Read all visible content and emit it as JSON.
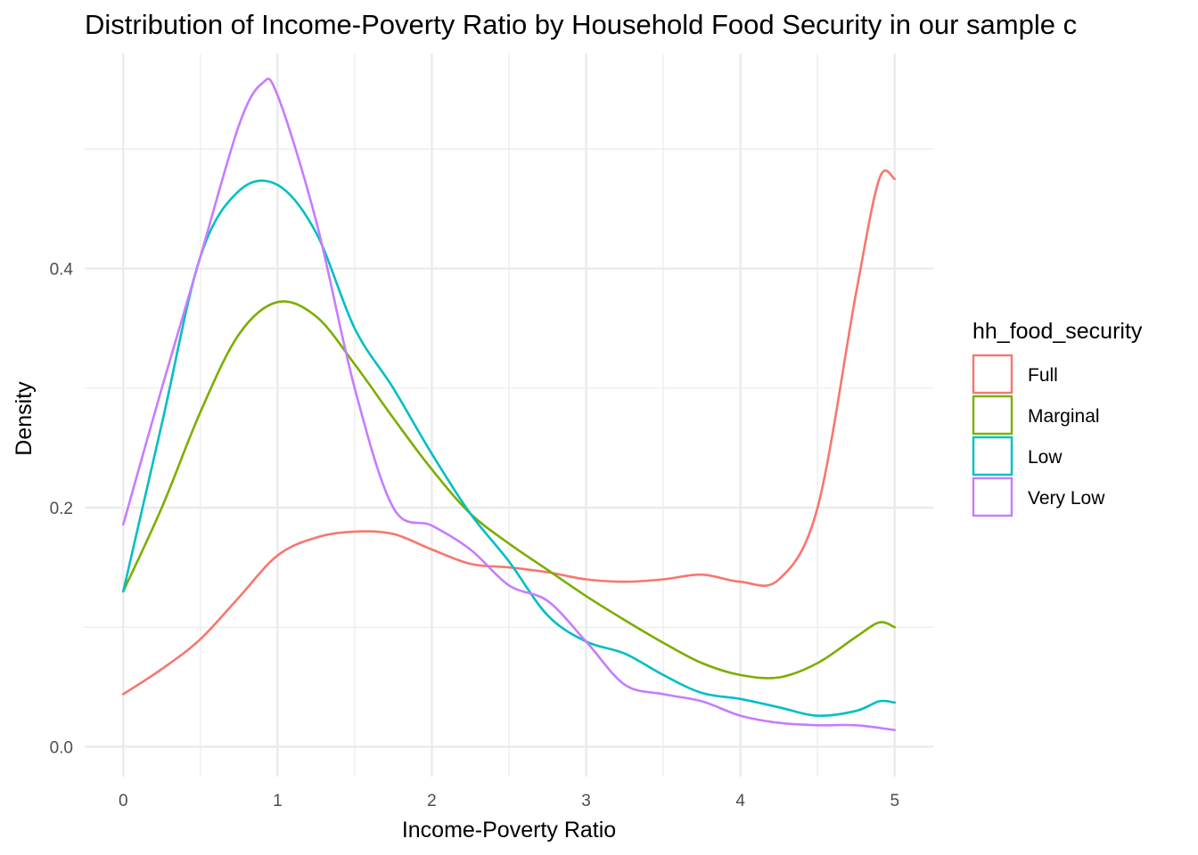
{
  "chart_data": {
    "type": "line",
    "title": "Distribution of Income-Poverty Ratio by Household Food Security in our sample c",
    "xlabel": "Income-Poverty Ratio",
    "ylabel": "Density",
    "xlim": [
      -0.25,
      5.25
    ],
    "ylim": [
      -0.025,
      0.58
    ],
    "x_ticks": [
      0,
      1,
      2,
      3,
      4,
      5
    ],
    "y_ticks": [
      0.0,
      0.2,
      0.4
    ],
    "x_tick_labels": [
      "0",
      "1",
      "2",
      "3",
      "4",
      "5"
    ],
    "y_tick_labels": [
      "0.0",
      "0.2",
      "0.4"
    ],
    "grid": true,
    "legend": {
      "title": "hh_food_security",
      "position": "right"
    },
    "series": [
      {
        "name": "Full",
        "color": "#F8766D",
        "points": [
          [
            0,
            0.044
          ],
          [
            0.25,
            0.065
          ],
          [
            0.5,
            0.09
          ],
          [
            0.75,
            0.125
          ],
          [
            1,
            0.16
          ],
          [
            1.25,
            0.175
          ],
          [
            1.5,
            0.18
          ],
          [
            1.75,
            0.178
          ],
          [
            2,
            0.165
          ],
          [
            2.25,
            0.153
          ],
          [
            2.5,
            0.15
          ],
          [
            2.75,
            0.146
          ],
          [
            3,
            0.14
          ],
          [
            3.25,
            0.138
          ],
          [
            3.5,
            0.14
          ],
          [
            3.75,
            0.144
          ],
          [
            4,
            0.138
          ],
          [
            4.25,
            0.14
          ],
          [
            4.5,
            0.2
          ],
          [
            4.75,
            0.38
          ],
          [
            4.9,
            0.475
          ],
          [
            5,
            0.475
          ]
        ]
      },
      {
        "name": "Marginal",
        "color": "#7CAE00",
        "points": [
          [
            0,
            0.13
          ],
          [
            0.25,
            0.2
          ],
          [
            0.5,
            0.28
          ],
          [
            0.75,
            0.345
          ],
          [
            1,
            0.372
          ],
          [
            1.25,
            0.36
          ],
          [
            1.5,
            0.32
          ],
          [
            1.75,
            0.275
          ],
          [
            2,
            0.232
          ],
          [
            2.25,
            0.195
          ],
          [
            2.5,
            0.17
          ],
          [
            2.75,
            0.148
          ],
          [
            3,
            0.126
          ],
          [
            3.25,
            0.106
          ],
          [
            3.5,
            0.087
          ],
          [
            3.75,
            0.07
          ],
          [
            4,
            0.06
          ],
          [
            4.25,
            0.058
          ],
          [
            4.5,
            0.07
          ],
          [
            4.75,
            0.092
          ],
          [
            4.9,
            0.104
          ],
          [
            5,
            0.1
          ]
        ]
      },
      {
        "name": "Low",
        "color": "#00BFC4",
        "points": [
          [
            0,
            0.13
          ],
          [
            0.25,
            0.27
          ],
          [
            0.5,
            0.41
          ],
          [
            0.75,
            0.465
          ],
          [
            1,
            0.47
          ],
          [
            1.25,
            0.43
          ],
          [
            1.5,
            0.35
          ],
          [
            1.75,
            0.3
          ],
          [
            2,
            0.245
          ],
          [
            2.25,
            0.195
          ],
          [
            2.5,
            0.155
          ],
          [
            2.75,
            0.11
          ],
          [
            3,
            0.088
          ],
          [
            3.25,
            0.078
          ],
          [
            3.5,
            0.06
          ],
          [
            3.75,
            0.045
          ],
          [
            4,
            0.04
          ],
          [
            4.25,
            0.033
          ],
          [
            4.5,
            0.026
          ],
          [
            4.75,
            0.03
          ],
          [
            4.9,
            0.038
          ],
          [
            5,
            0.037
          ]
        ]
      },
      {
        "name": "Very Low",
        "color": "#C77CFF",
        "points": [
          [
            0,
            0.186
          ],
          [
            0.25,
            0.3
          ],
          [
            0.5,
            0.41
          ],
          [
            0.75,
            0.52
          ],
          [
            0.9,
            0.555
          ],
          [
            1,
            0.545
          ],
          [
            1.25,
            0.44
          ],
          [
            1.5,
            0.3
          ],
          [
            1.75,
            0.2
          ],
          [
            2,
            0.185
          ],
          [
            2.25,
            0.165
          ],
          [
            2.5,
            0.135
          ],
          [
            2.75,
            0.122
          ],
          [
            3,
            0.088
          ],
          [
            3.25,
            0.052
          ],
          [
            3.5,
            0.044
          ],
          [
            3.75,
            0.038
          ],
          [
            4,
            0.026
          ],
          [
            4.25,
            0.02
          ],
          [
            4.5,
            0.018
          ],
          [
            4.75,
            0.018
          ],
          [
            5,
            0.014
          ]
        ]
      }
    ]
  }
}
